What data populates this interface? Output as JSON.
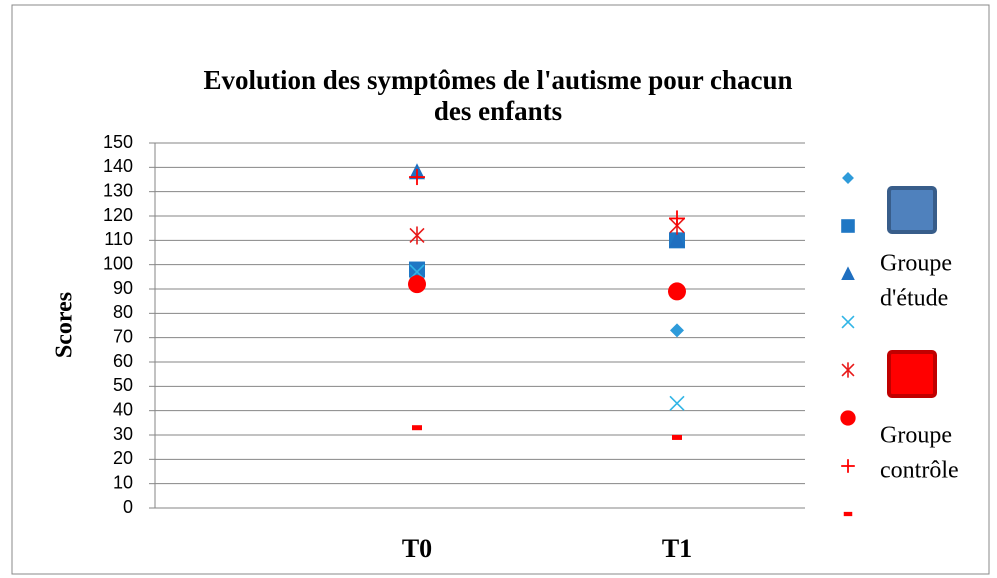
{
  "chart_data": {
    "type": "scatter",
    "title": [
      "Evolution des symptômes de l'autisme pour chacun",
      "des enfants"
    ],
    "y_label": "Scores",
    "categories": [
      "T0",
      "T1"
    ],
    "ylim": [
      0,
      150
    ],
    "yticks": [
      0,
      10,
      20,
      30,
      40,
      50,
      60,
      70,
      80,
      90,
      100,
      110,
      120,
      130,
      140,
      150
    ],
    "grid": true,
    "series": [
      {
        "marker": "diamond",
        "color": "#2E9BDA",
        "values": [
          97,
          73
        ]
      },
      {
        "marker": "square",
        "color": "#1F77C4",
        "values": [
          98,
          110
        ]
      },
      {
        "marker": "triangle",
        "color": "#1F6FC0",
        "values": [
          138,
          110
        ]
      },
      {
        "marker": "x",
        "color": "#30B5E6",
        "values": [
          97,
          43
        ]
      },
      {
        "marker": "asterisk",
        "color": "#E81818",
        "values": [
          112,
          116
        ]
      },
      {
        "marker": "circle",
        "color": "#FF0000",
        "values": [
          92,
          89
        ]
      },
      {
        "marker": "plus",
        "color": "#FF0000",
        "values": [
          136,
          119
        ]
      },
      {
        "marker": "dash",
        "color": "#FF0000",
        "values": [
          33,
          29
        ]
      }
    ],
    "legend_groups": [
      {
        "lines": [
          "Groupe",
          "d'étude"
        ],
        "color": "#4F81BD",
        "border": "#385D8A"
      },
      {
        "lines": [
          "Groupe",
          "contrôle"
        ],
        "color": "#FF0000",
        "border": "#C00000"
      }
    ]
  }
}
